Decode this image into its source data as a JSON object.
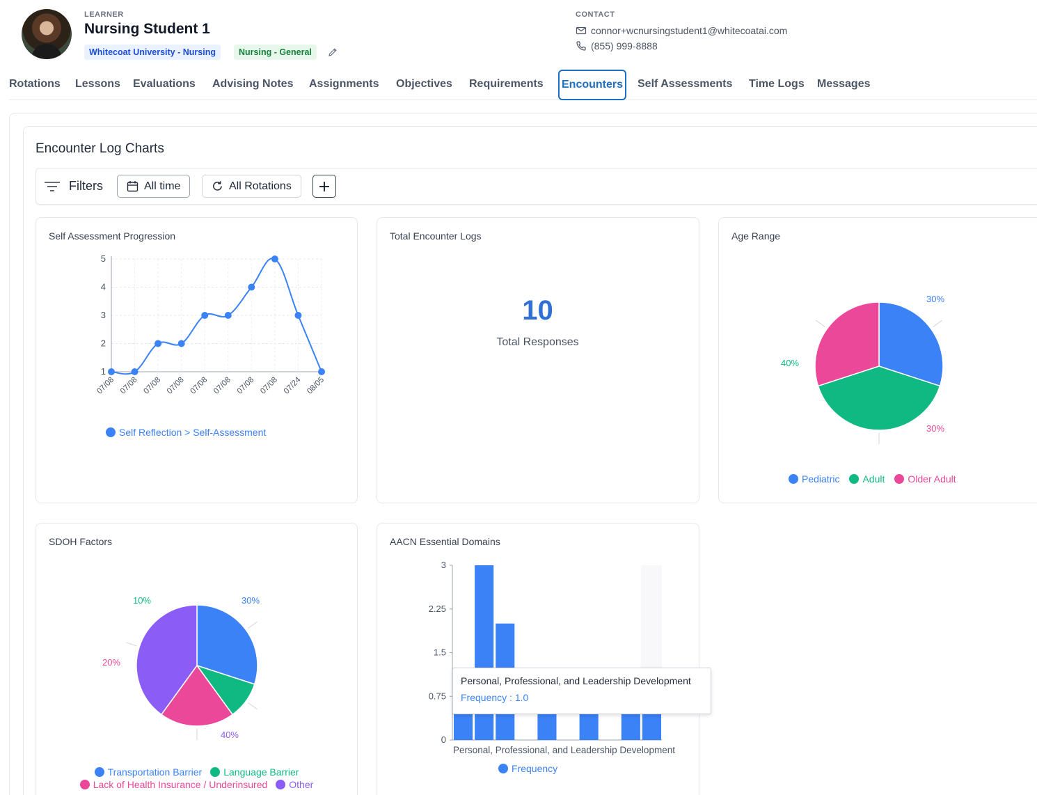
{
  "learner": {
    "label": "LEARNER",
    "name": "Nursing Student 1",
    "badges": [
      "Whitecoat University - Nursing",
      "Nursing - General"
    ]
  },
  "contact": {
    "label": "CONTACT",
    "email": "connor+wcnursingstudent1@whitecoatai.com",
    "phone": "(855) 999-8888"
  },
  "tabs": [
    "Rotations",
    "Lessons",
    "Evaluations",
    "Advising Notes",
    "Assignments",
    "Objectives",
    "Requirements",
    "Encounters",
    "Self Assessments",
    "Time Logs",
    "Messages"
  ],
  "active_tab": "Encounters",
  "section": {
    "title": "Encounter Log Charts"
  },
  "filters": {
    "label": "Filters",
    "time": "All time",
    "rotations": "All Rotations"
  },
  "colors": {
    "blue": "#3b82f6",
    "green": "#10b981",
    "pink": "#ec4899",
    "purple": "#8b5cf6",
    "active_tab": "#1d6fbf"
  },
  "chart_data": [
    {
      "type": "line",
      "title": "Self Assessment Progression",
      "categories": [
        "07/08",
        "07/08",
        "07/08",
        "07/08",
        "07/08",
        "07/08",
        "07/08",
        "07/08",
        "07/24",
        "08/05"
      ],
      "series": [
        {
          "name": "Self Reflection > Self-Assessment",
          "values": [
            1,
            1,
            2,
            2,
            3,
            3,
            4,
            5,
            3,
            1
          ]
        }
      ],
      "yticks": [
        1,
        2,
        3,
        4,
        5
      ],
      "ylim": [
        1,
        5
      ],
      "grid": true,
      "legend": "bottom"
    },
    {
      "type": "table",
      "title": "Total Encounter Logs",
      "value": "10",
      "caption": "Total Responses"
    },
    {
      "type": "pie",
      "title": "Age Range",
      "labels": [
        "Pediatric",
        "Adult",
        "Older Adult"
      ],
      "values": [
        30,
        40,
        30
      ],
      "value_labels": [
        "30%",
        "40%",
        "30%"
      ],
      "colors": [
        "#3b82f6",
        "#10b981",
        "#ec4899"
      ],
      "legend": "bottom"
    },
    {
      "type": "pie",
      "title": "SDOH Factors",
      "labels": [
        "Transportation Barrier",
        "Language Barrier",
        "Lack of Health Insurance / Underinsured",
        "Other"
      ],
      "values": [
        30,
        10,
        20,
        40
      ],
      "value_labels": [
        "30%",
        "10%",
        "20%",
        "40%"
      ],
      "colors": [
        "#3b82f6",
        "#10b981",
        "#ec4899",
        "#8b5cf6"
      ],
      "legend": "bottom"
    },
    {
      "type": "bar",
      "title": "AACN Essential Domains",
      "xlabel": "Personal, Professional, and Leadership Development",
      "series": [
        {
          "name": "Frequency",
          "values": [
            1,
            3,
            2,
            0,
            1,
            0,
            1,
            0,
            1,
            1
          ]
        }
      ],
      "yticks": [
        "0",
        "0.75",
        "1.5",
        "2.25",
        "3"
      ],
      "ylim": [
        0,
        3
      ],
      "tooltip": {
        "title": "Personal, Professional, and Leadership Development",
        "value": "Frequency : 1.0"
      },
      "legend": "bottom"
    }
  ]
}
